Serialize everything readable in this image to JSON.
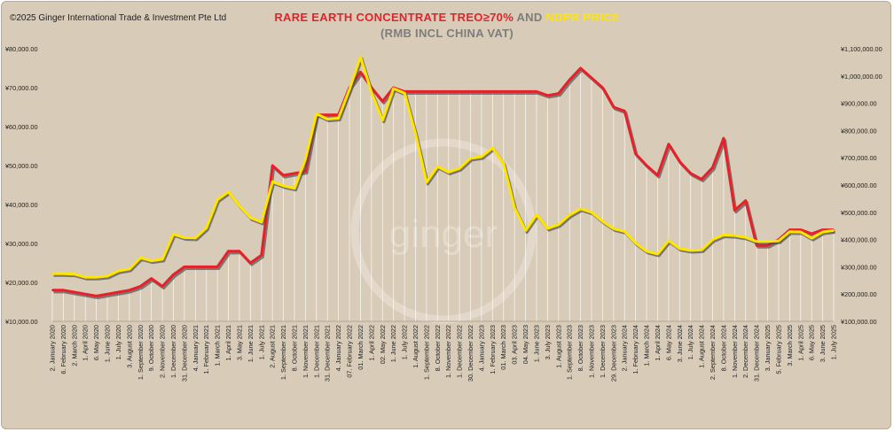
{
  "header": {
    "copyright": "©2025 Ginger International Trade & Investment Pte Ltd",
    "title_red": "RARE EARTH CONCENTRATE TREO≥70%",
    "title_and": " AND ",
    "title_yellow": "NDPR PRICE",
    "subtitle": "(RMB INCL CHINA VAT)"
  },
  "watermark": "ginger",
  "colors": {
    "background": "#d8cbb8",
    "treo_line": "#e8202a",
    "ndpr_line": "#ffe600",
    "shadow": "#4a4a4a",
    "watermark": "#ece4d8"
  },
  "chart_data": {
    "type": "line",
    "title": "RARE EARTH CONCENTRATE TREO≥70% AND NDPR PRICE",
    "subtitle": "(RMB INCL CHINA VAT)",
    "legend": "none",
    "grid": false,
    "y_left": {
      "range": [
        10000,
        80000
      ],
      "ticks": [
        "¥10,000.00",
        "¥20,000.00",
        "¥30,000.00",
        "¥40,000.00",
        "¥50,000.00",
        "¥60,000.00",
        "¥70,000.00",
        "¥80,000.00"
      ]
    },
    "y_right": {
      "range": [
        100000,
        1100000
      ],
      "ticks": [
        "¥100,000.00",
        "¥200,000.00",
        "¥300,000.00",
        "¥400,000.00",
        "¥500,000.00",
        "¥600,000.00",
        "¥700,000.00",
        "¥800,000.00",
        "¥900,000.00",
        "¥1,000,000.00",
        "¥1,100,000.00"
      ]
    },
    "x_labels": [
      "2. January 2020",
      "6. February 2020",
      "2. March 2020",
      "1. April 2020",
      "6. May 2020",
      "1. June 2020",
      "1. July 2020",
      "3. August 2020",
      "1. September 2020",
      "9. October 2020",
      "2. November 2020",
      "1. December 2020",
      "31. December 2020",
      "4. January 2021",
      "1. February 2021",
      "1. March 2021",
      "1. April 2021",
      "3. May 2021",
      "1. June 2021",
      "1. July 2021",
      "2. August 2021",
      "1. September 2021",
      "8. October 2021",
      "1. November 2021",
      "1. December 2021",
      "31. December 2021",
      "4. January 2022",
      "07. February 2022",
      "01. March 2022",
      "1. April 2022",
      "02. May 2022",
      "1. June 2022",
      "1. July 2022",
      "1. August 2022",
      "1. September 2022",
      "8. October 2022",
      "1. November 2022",
      "1. December 2022",
      "30. December 2022",
      "4. January 2023",
      "1. February 2023",
      "01. March 2023",
      "03. April 2023",
      "04. May 2023",
      "1. June 2023",
      "3. July 2023",
      "1. August 2023",
      "1. September 2023",
      "8. October 2023",
      "1. November 2023",
      "1. December 2023",
      "29. December 2023",
      "2. January 2024",
      "1. February 2024",
      "1. March 2024",
      "1. April 2024",
      "6. May 2024",
      "3. June 2024",
      "1. July 2024",
      "1. August 2024",
      "2. September 2024",
      "8. October 2024",
      "1. November 2024",
      "2. December 2024",
      "31. December 2024",
      "3. January 2025",
      "5. February 2025",
      "3. March 2025",
      "1. April 2025",
      "6. May 2025",
      "3. June 2025",
      "1. July 2025"
    ],
    "series": [
      {
        "axis": "left",
        "color": "#e8202a",
        "values": [
          18000,
          18000,
          17500,
          17000,
          16500,
          17000,
          17500,
          18000,
          19000,
          21000,
          19000,
          22000,
          24000,
          24000,
          24000,
          24000,
          28000,
          28000,
          25000,
          27000,
          50000,
          47500,
          48000,
          48500,
          63000,
          63000,
          63000,
          70000,
          74000,
          70000,
          66500,
          70000,
          69000,
          69000,
          69000,
          69000,
          69000,
          69000,
          69000,
          69000,
          69000,
          69000,
          69000,
          69000,
          69000,
          68000,
          68500,
          72000,
          75000,
          72500,
          70000,
          65000,
          64000,
          53000,
          50000,
          47500,
          55500,
          51000,
          48000,
          46500,
          49500,
          57000,
          38500,
          41000,
          29500,
          29500,
          31000,
          33500,
          33500,
          32500,
          33500,
          33500
        ]
      },
      {
        "axis": "right",
        "color": "#ffe600",
        "values": [
          275000,
          275000,
          273000,
          262000,
          262000,
          266000,
          285000,
          292000,
          333000,
          322000,
          328000,
          420000,
          407000,
          406000,
          443000,
          546000,
          575000,
          524000,
          480000,
          464000,
          612000,
          597000,
          588000,
          695000,
          861000,
          842000,
          845000,
          950000,
          1070000,
          940000,
          838000,
          954000,
          937000,
          787000,
          610000,
          668000,
          647000,
          661000,
          698000,
          704000,
          736000,
          679000,
          515000,
          433000,
          491000,
          441000,
          455000,
          490000,
          513000,
          500000,
          467000,
          440000,
          430000,
          387000,
          357000,
          347000,
          396000,
          367000,
          360000,
          362000,
          400000,
          417000,
          415000,
          408000,
          393000,
          393000,
          395000,
          429000,
          428000,
          405000,
          428000,
          433000
        ]
      }
    ]
  }
}
